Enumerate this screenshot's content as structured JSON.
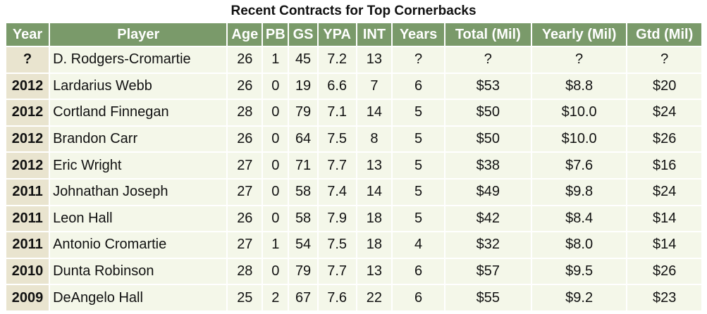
{
  "title": "Recent Contracts for Top Cornerbacks",
  "colors": {
    "header_bg": "#7a9a6a",
    "header_text": "#ffffff",
    "row_bg": "#f4f7e9",
    "year_bg": "#e9e4cf"
  },
  "table": {
    "columns": [
      "Year",
      "Player",
      "Age",
      "PB",
      "GS",
      "YPA",
      "INT",
      "Years",
      "Total (Mil)",
      "Yearly (Mil)",
      "Gtd (Mil)"
    ],
    "rows": [
      [
        "?",
        "D. Rodgers-Cromartie",
        "26",
        "1",
        "45",
        "7.2",
        "13",
        "?",
        "?",
        "?",
        "?"
      ],
      [
        "2012",
        "Lardarius Webb",
        "26",
        "0",
        "19",
        "6.6",
        "7",
        "6",
        "$53",
        "$8.8",
        "$20"
      ],
      [
        "2012",
        "Cortland Finnegan",
        "28",
        "0",
        "79",
        "7.1",
        "14",
        "5",
        "$50",
        "$10.0",
        "$24"
      ],
      [
        "2012",
        "Brandon Carr",
        "26",
        "0",
        "64",
        "7.5",
        "8",
        "5",
        "$50",
        "$10.0",
        "$26"
      ],
      [
        "2012",
        "Eric Wright",
        "27",
        "0",
        "71",
        "7.7",
        "13",
        "5",
        "$38",
        "$7.6",
        "$16"
      ],
      [
        "2011",
        "Johnathan Joseph",
        "27",
        "0",
        "58",
        "7.4",
        "14",
        "5",
        "$49",
        "$9.8",
        "$24"
      ],
      [
        "2011",
        "Leon Hall",
        "26",
        "0",
        "58",
        "7.9",
        "18",
        "5",
        "$42",
        "$8.4",
        "$14"
      ],
      [
        "2011",
        "Antonio Cromartie",
        "27",
        "1",
        "54",
        "7.5",
        "18",
        "4",
        "$32",
        "$8.0",
        "$14"
      ],
      [
        "2010",
        "Dunta Robinson",
        "28",
        "0",
        "79",
        "7.7",
        "13",
        "6",
        "$57",
        "$9.5",
        "$26"
      ],
      [
        "2009",
        "DeAngelo Hall",
        "25",
        "2",
        "67",
        "7.6",
        "22",
        "6",
        "$55",
        "$9.2",
        "$23"
      ]
    ]
  }
}
